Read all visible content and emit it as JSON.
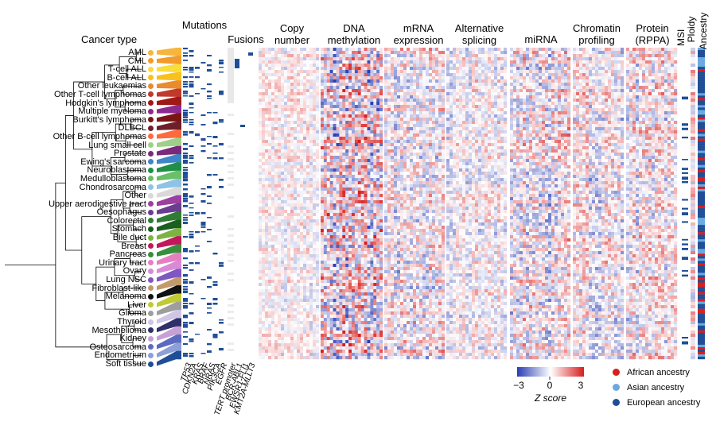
{
  "headers": {
    "cancer_type": "Cancer type",
    "mutations": "Mutations",
    "fusions": "Fusions",
    "copy_number": [
      "Copy",
      "number"
    ],
    "dna_methylation": [
      "DNA",
      "methylation"
    ],
    "mrna_expression": [
      "mRNA",
      "expression"
    ],
    "alternative_splicing": [
      "Alternative",
      "splicing"
    ],
    "mirna": "miRNA",
    "chromatin_profiling": [
      "Chromatin",
      "profiling"
    ],
    "protein_rppa": [
      "Protein",
      "(RPPA)"
    ],
    "msi": "MSI",
    "ploidy": "Ploidy",
    "ancestry": "Ancestry"
  },
  "cancer_types": [
    {
      "name": "AML",
      "color": "#f6b53c"
    },
    {
      "name": "CML",
      "color": "#f39a2a"
    },
    {
      "name": "T-cell ALL",
      "color": "#f9dd3c"
    },
    {
      "name": "B-cell ALL",
      "color": "#f7c21f"
    },
    {
      "name": "Other leukaemias",
      "color": "#e98b2e"
    },
    {
      "name": "Other T-cell lymphomas",
      "color": "#c0392b"
    },
    {
      "name": "Hodgkin's lymphoma",
      "color": "#a01818"
    },
    {
      "name": "Multiple myeloma",
      "color": "#8b2a8f"
    },
    {
      "name": "Burkitt's lymphoma",
      "color": "#7b1515"
    },
    {
      "name": "DLBCL",
      "color": "#6e1f2a"
    },
    {
      "name": "Other B-cell lymphomas",
      "color": "#ff6a3d"
    },
    {
      "name": "Lung small cell",
      "color": "#9ed08a"
    },
    {
      "name": "Prostate",
      "color": "#7a2a7a"
    },
    {
      "name": "Ewing's sarcoma",
      "color": "#3e86c7"
    },
    {
      "name": "Neuroblastoma",
      "color": "#1f8f47"
    },
    {
      "name": "Medulloblastoma",
      "color": "#6abf69"
    },
    {
      "name": "Chondrosarcoma",
      "color": "#8ec3e6"
    },
    {
      "name": "Other",
      "color": "#d9d9d9"
    },
    {
      "name": "Upper aerodigestive tract",
      "color": "#9c3fa0"
    },
    {
      "name": "Oesophagus",
      "color": "#6b3d8f"
    },
    {
      "name": "Colorectal",
      "color": "#2e7d32"
    },
    {
      "name": "Stomach",
      "color": "#1b5e20"
    },
    {
      "name": "Bile duct",
      "color": "#7cb342"
    },
    {
      "name": "Breast",
      "color": "#c2185b"
    },
    {
      "name": "Pancreas",
      "color": "#388e3c"
    },
    {
      "name": "Urinary tract",
      "color": "#e57fc2"
    },
    {
      "name": "Ovary",
      "color": "#d98ad6"
    },
    {
      "name": "Lung NSC",
      "color": "#7e57c2"
    },
    {
      "name": "Fibroblast-like",
      "color": "#c29a6b"
    },
    {
      "name": "Melanoma",
      "color": "#111111"
    },
    {
      "name": "Liver",
      "color": "#c0ca33"
    },
    {
      "name": "Glioma",
      "color": "#9e9e9e"
    },
    {
      "name": "Thyroid",
      "color": "#cfc6e6"
    },
    {
      "name": "Mesothelioma",
      "color": "#2f2f6a"
    },
    {
      "name": "Kidney",
      "color": "#c7a0d6"
    },
    {
      "name": "Osteosarcoma",
      "color": "#5c6bc0"
    },
    {
      "name": "Endometrium",
      "color": "#8e9fd6"
    },
    {
      "name": "Soft tissue",
      "color": "#1f4e96"
    }
  ],
  "mutation_genes": [
    "TP53",
    "CDKN2A",
    "KRAS",
    "BRAF",
    "NRAS",
    "PIK3CA",
    "EGFR"
  ],
  "fusion_genes": [
    "TERT promoter",
    "BCR-ABL1",
    "EWSR1-FLI1",
    "KMT2A-MLLT3"
  ],
  "colorbar": {
    "ticks": [
      "−3",
      "0",
      "3"
    ],
    "title": "Z score",
    "low_color": "#2a3db3",
    "mid_color": "#ffffff",
    "high_color": "#d81e1e"
  },
  "ancestry_legend": [
    {
      "label": "African ancestry",
      "color": "#d81e1e"
    },
    {
      "label": "Asian ancestry",
      "color": "#6aa8e0"
    },
    {
      "label": "European ancestry",
      "color": "#1f4e96"
    }
  ],
  "chart_data": {
    "type": "heatmap",
    "rows": "cell lines grouped by cancer type",
    "panels": [
      "Mutations",
      "Fusions",
      "Copy number",
      "DNA methylation",
      "mRNA expression",
      "Alternative splicing",
      "miRNA",
      "Chromatin profiling",
      "Protein (RPPA)",
      "MSI",
      "Ploidy",
      "Ancestry"
    ],
    "color_scale": {
      "min": -3,
      "mid": 0,
      "max": 3,
      "label": "Z score"
    }
  }
}
